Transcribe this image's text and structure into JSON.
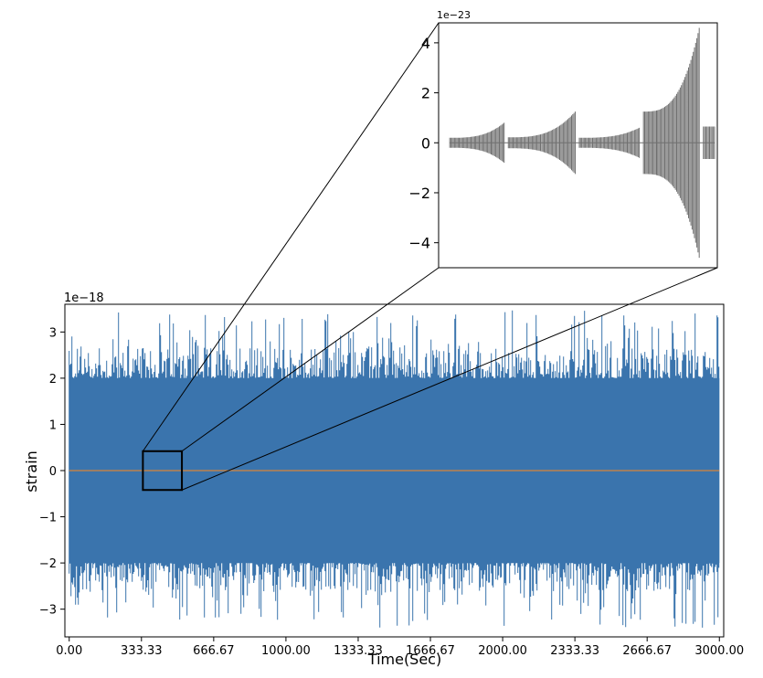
{
  "chart_data": [
    {
      "type": "line",
      "role": "main",
      "xlabel": "Time(Sec)",
      "ylabel": "strain",
      "offset_label": "1e−18",
      "xlim": [
        -20,
        3020
      ],
      "ylim": [
        -3.6,
        3.6
      ],
      "x_ticks": [
        0,
        333.33,
        666.67,
        1000,
        1333.33,
        1666.67,
        2000,
        2333.33,
        2666.67,
        3000
      ],
      "x_tick_labels": [
        "0.00",
        "333.33",
        "666.67",
        "1000.00",
        "1333.33",
        "1666.67",
        "2000.00",
        "2333.33",
        "2666.67",
        "3000.00"
      ],
      "y_ticks": [
        -3,
        -2,
        -1,
        0,
        1,
        2,
        3
      ],
      "y_tick_labels": [
        "−3",
        "−2",
        "−1",
        "0",
        "1",
        "2",
        "3"
      ],
      "grid": false,
      "series": [
        {
          "color": "#3a74ad",
          "kind": "noise",
          "x_range": [
            0,
            3000
          ],
          "band": [
            -2.0,
            2.0
          ],
          "peak_extent": [
            -3.4,
            3.5
          ]
        },
        {
          "color": "#d6853a",
          "kind": "signal",
          "x_range": [
            0,
            3000
          ],
          "values": [
            0,
            0
          ]
        }
      ],
      "zoom_box": {
        "x": [
          340,
          520
        ],
        "y": [
          -0.42,
          0.42
        ]
      }
    },
    {
      "type": "line",
      "role": "inset",
      "offset_label": "1e−23",
      "ylim": [
        -5.0,
        4.8
      ],
      "y_ticks": [
        -4,
        -2,
        0,
        2,
        4
      ],
      "y_tick_labels": [
        "−4",
        "−2",
        "0",
        "2",
        "4"
      ],
      "grid": false,
      "series": [
        {
          "color": "#707070",
          "kind": "chirp-bursts",
          "bursts": [
            {
              "start": 0.04,
              "end": 0.235,
              "amp_start": 0.2,
              "amp_end": 0.8
            },
            {
              "start": 0.25,
              "end": 0.49,
              "amp_start": 0.22,
              "amp_end": 1.25
            },
            {
              "start": 0.505,
              "end": 0.72,
              "amp_start": 0.2,
              "amp_end": 0.6
            },
            {
              "start": 0.735,
              "end": 0.935,
              "amp_start": 1.25,
              "amp_end": 4.6
            },
            {
              "start": 0.95,
              "end": 0.99,
              "amp_start": 0.65,
              "amp_end": 0.65
            }
          ]
        }
      ]
    }
  ]
}
